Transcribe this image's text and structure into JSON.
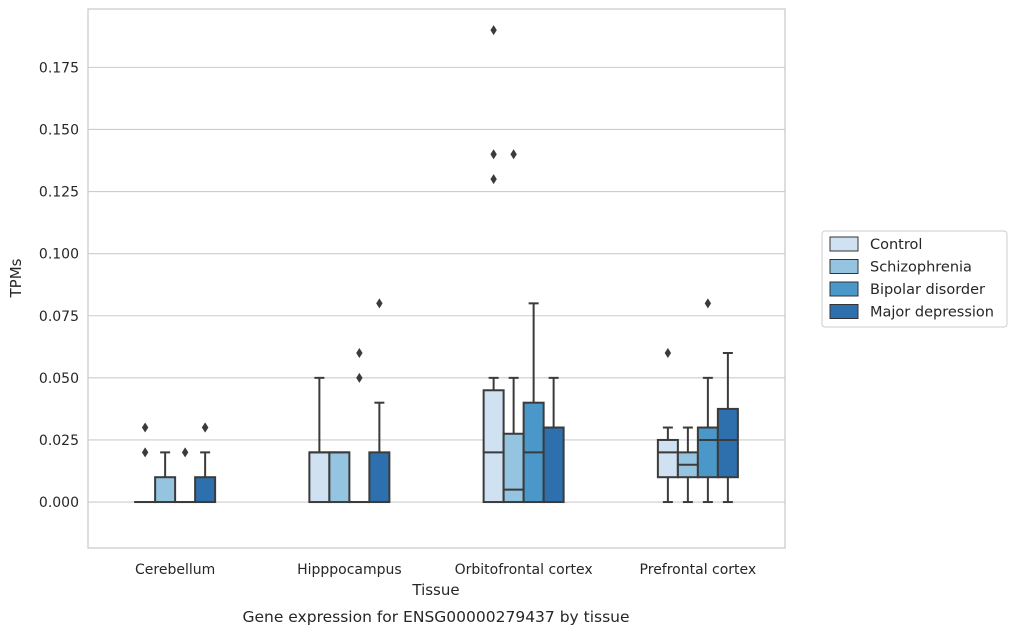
{
  "caption": "Gene expression for ENSG00000279437 by tissue",
  "colors": {
    "grid": "#cccccc",
    "axes_edge": "#cccccc",
    "box_edge": "#3b3b3b",
    "text": "#262626"
  },
  "chart_data": {
    "type": "box",
    "title": "",
    "xlabel": "Tissue",
    "ylabel": "TPMs",
    "ylim": [
      -0.0185,
      0.1985
    ],
    "yticks": [
      "0.000",
      "0.025",
      "0.050",
      "0.075",
      "0.100",
      "0.125",
      "0.150",
      "0.175"
    ],
    "ytick_values": [
      0,
      0.025,
      0.05,
      0.075,
      0.1,
      0.125,
      0.15,
      0.175
    ],
    "grid": "horizontal",
    "legend_position": "right, outside",
    "categories": [
      "Cerebellum",
      "Hipppocampus",
      "Orbitofrontal cortex",
      "Prefrontal cortex"
    ],
    "series": [
      {
        "name": "Control",
        "color": "#d0e1f2",
        "boxes": [
          {
            "q1": 0,
            "median": 0,
            "q3": 0,
            "whislo": 0,
            "whishi": 0,
            "fliers": []
          },
          {
            "q1": 0,
            "median": 0.02,
            "q3": 0.02,
            "whislo": 0,
            "whishi": 0.05,
            "fliers": []
          },
          {
            "q1": 0,
            "median": 0.02,
            "q3": 0.045,
            "whislo": 0,
            "whishi": 0.05,
            "fliers": [
              0.13,
              0.14,
              0.19
            ]
          },
          {
            "q1": 0.01,
            "median": 0.02,
            "q3": 0.025,
            "whislo": 0,
            "whishi": 0.03,
            "fliers": [
              0.06
            ]
          }
        ]
      },
      {
        "name": "Schizophrenia",
        "color": "#94c4df",
        "boxes": [
          {
            "q1": 0,
            "median": 0,
            "q3": 0.01,
            "whislo": 0,
            "whishi": 0.02,
            "fliers": []
          },
          {
            "q1": 0,
            "median": 0.02,
            "q3": 0.02,
            "whislo": 0,
            "whishi": 0.02,
            "fliers": []
          },
          {
            "q1": 0,
            "median": 0.005,
            "q3": 0.0275,
            "whislo": 0,
            "whishi": 0.05,
            "fliers": [
              0.14
            ]
          },
          {
            "q1": 0.01,
            "median": 0.015,
            "q3": 0.02,
            "whislo": 0,
            "whishi": 0.03,
            "fliers": []
          }
        ]
      },
      {
        "name": "Bipolar disorder",
        "color": "#4a98c9",
        "boxes": [
          {
            "q1": 0,
            "median": 0,
            "q3": 0,
            "whislo": 0,
            "whishi": 0,
            "fliers": [
              0.02
            ]
          },
          {
            "q1": 0,
            "median": 0,
            "q3": 0,
            "whislo": 0,
            "whishi": 0,
            "fliers": [
              0.05,
              0.06
            ]
          },
          {
            "q1": 0,
            "median": 0.02,
            "q3": 0.04,
            "whislo": 0,
            "whishi": 0.08,
            "fliers": []
          },
          {
            "q1": 0.01,
            "median": 0.025,
            "q3": 0.03,
            "whislo": 0,
            "whishi": 0.05,
            "fliers": [
              0.08
            ]
          }
        ]
      },
      {
        "name": "Major depression",
        "color": "#2e6fad",
        "boxes": [
          {
            "q1": 0,
            "median": 0,
            "q3": 0.01,
            "whislo": 0,
            "whishi": 0.02,
            "fliers": [
              0.03
            ]
          },
          {
            "q1": 0,
            "median": 0,
            "q3": 0.02,
            "whislo": 0,
            "whishi": 0.04,
            "fliers": [
              0.08
            ]
          },
          {
            "q1": 0,
            "median": 0.03,
            "q3": 0.03,
            "whislo": 0,
            "whishi": 0.05,
            "fliers": []
          },
          {
            "q1": 0.01,
            "median": 0.025,
            "q3": 0.0375,
            "whislo": 0,
            "whishi": 0.06,
            "fliers": []
          }
        ]
      }
    ],
    "extra_fliers": [
      {
        "category": "Cerebellum",
        "series": "Control",
        "values": [
          0.02,
          0.03
        ]
      },
      {
        "category": "Cerebellum",
        "series": "Major depression",
        "values": [
          0.03
        ]
      }
    ]
  }
}
